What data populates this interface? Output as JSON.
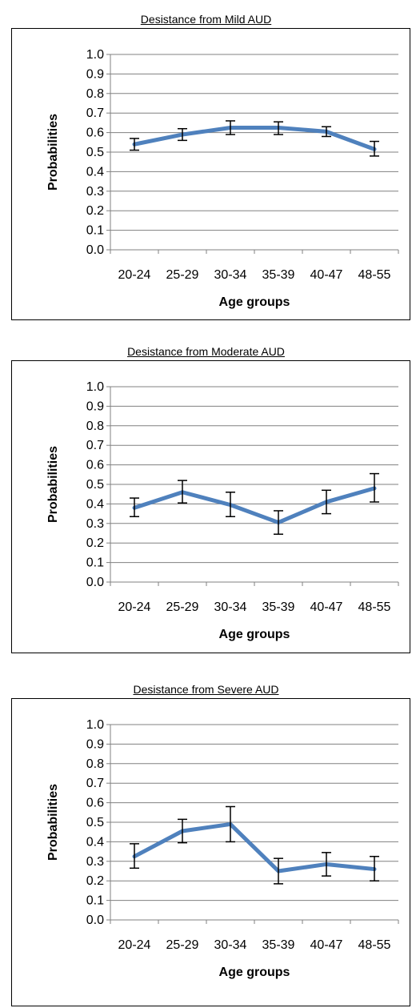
{
  "chart_data": [
    {
      "type": "line",
      "title": "Desistance from Mild AUD",
      "xlabel": "Age groups",
      "ylabel": "Probabilities",
      "categories": [
        "20-24",
        "25-29",
        "30-34",
        "35-39",
        "40-47",
        "48-55"
      ],
      "yticks": [
        "0.0",
        "0.1",
        "0.2",
        "0.3",
        "0.4",
        "0.5",
        "0.6",
        "0.7",
        "0.8",
        "0.9",
        "1.0"
      ],
      "ylim": [
        0,
        1
      ],
      "grid": true,
      "series_color": "#4F81BD",
      "values": [
        0.54,
        0.59,
        0.625,
        0.625,
        0.605,
        0.515
      ],
      "error_low": [
        0.51,
        0.56,
        0.59,
        0.59,
        0.58,
        0.48
      ],
      "error_high": [
        0.57,
        0.62,
        0.66,
        0.655,
        0.63,
        0.555
      ]
    },
    {
      "type": "line",
      "title": "Desistance from Moderate AUD",
      "xlabel": "Age groups",
      "ylabel": "Probabilities",
      "categories": [
        "20-24",
        "25-29",
        "30-34",
        "35-39",
        "40-47",
        "48-55"
      ],
      "yticks": [
        "0.0",
        "0.1",
        "0.2",
        "0.3",
        "0.4",
        "0.5",
        "0.6",
        "0.7",
        "0.8",
        "0.9",
        "1.0"
      ],
      "ylim": [
        0,
        1
      ],
      "grid": true,
      "series_color": "#4F81BD",
      "values": [
        0.38,
        0.46,
        0.395,
        0.305,
        0.41,
        0.48
      ],
      "error_low": [
        0.335,
        0.405,
        0.335,
        0.245,
        0.35,
        0.41
      ],
      "error_high": [
        0.43,
        0.52,
        0.46,
        0.365,
        0.47,
        0.555
      ]
    },
    {
      "type": "line",
      "title": "Desistance from Severe AUD",
      "xlabel": "Age groups",
      "ylabel": "Probabilities",
      "categories": [
        "20-24",
        "25-29",
        "30-34",
        "35-39",
        "40-47",
        "48-55"
      ],
      "yticks": [
        "0.0",
        "0.1",
        "0.2",
        "0.3",
        "0.4",
        "0.5",
        "0.6",
        "0.7",
        "0.8",
        "0.9",
        "1.0"
      ],
      "ylim": [
        0,
        1
      ],
      "grid": true,
      "series_color": "#4F81BD",
      "values": [
        0.325,
        0.455,
        0.49,
        0.25,
        0.285,
        0.26
      ],
      "error_low": [
        0.265,
        0.395,
        0.4,
        0.185,
        0.225,
        0.2
      ],
      "error_high": [
        0.39,
        0.515,
        0.58,
        0.315,
        0.345,
        0.325
      ]
    }
  ]
}
